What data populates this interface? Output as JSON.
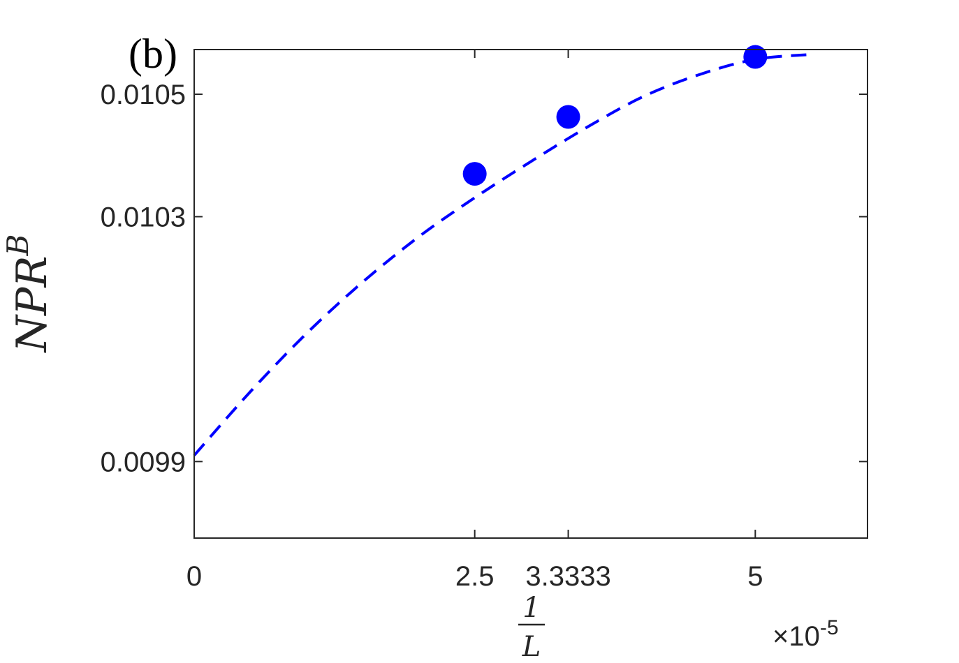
{
  "chart_data": {
    "type": "scatter",
    "panel_label": "(b)",
    "xlabel_num": "1",
    "xlabel_den": "L",
    "ylabel": "NPR",
    "ylabel_sup": "B",
    "x_exponent_times": "×10",
    "x_exponent_power": "-5",
    "xlim": [
      0,
      6
    ],
    "ylim": [
      0.009775,
      0.010573
    ],
    "x_ticks": [
      0,
      2.5,
      3.3333,
      5
    ],
    "x_tick_labels": [
      "0",
      "2.5",
      "3.3333",
      "5"
    ],
    "y_ticks": [
      0.0099,
      0.0103,
      0.0105
    ],
    "y_tick_labels": [
      "0.0099",
      "0.0103",
      "0.0105"
    ],
    "points": {
      "x": [
        2.5,
        3.3333,
        5
      ],
      "y": [
        0.01037,
        0.010463,
        0.010561
      ]
    },
    "fit_curve": {
      "x": [
        0,
        0.5,
        1,
        1.5,
        2,
        2.5,
        3,
        3.5,
        4,
        4.5,
        5,
        5.5
      ],
      "y": [
        0.00991,
        0.010014,
        0.010109,
        0.010193,
        0.010267,
        0.010331,
        0.01039,
        0.010446,
        0.010496,
        0.010532,
        0.010557,
        0.010565
      ]
    },
    "colors": {
      "series": "#0000ff",
      "axes": "#262626"
    },
    "grid": false,
    "legend": "none"
  }
}
